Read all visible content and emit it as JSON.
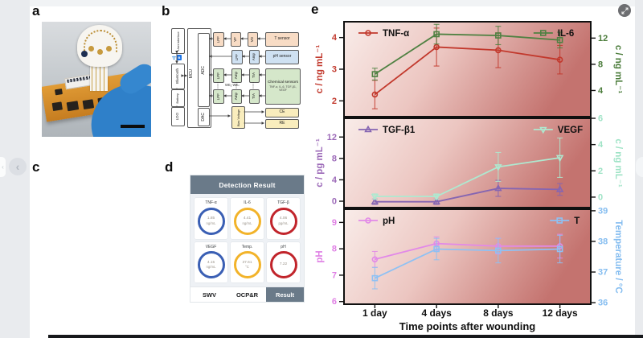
{
  "figure": {
    "panel_labels": {
      "a": "a",
      "b": "b",
      "c": "c",
      "d": "d",
      "e": "e"
    }
  },
  "chrome": {
    "nav_left_glyph": "‹",
    "nav_right_glyph": "›",
    "expand_icon": "expand-icon"
  },
  "panel_b": {
    "user_interface": "User interface",
    "bluetooth": "Bluetooth",
    "bluetooth_chip": "B",
    "battery": "Battery",
    "ldo": "LDO",
    "mcu": "MCU",
    "adc": "ADC",
    "dac": "DAC",
    "lpf": "LPF",
    "vf": "VF",
    "vd": "VD",
    "amp": "Amp",
    "tia": "TIA",
    "t_sensor": "T sensor",
    "ph_sensor": "pH sensor",
    "chem_title": "Chemical sensors",
    "chem_sub": "TNF-α, IL-6, TGF-β1, VEGF",
    "we_label": "WE₁-WEₙ",
    "bias": "Bias Voltage",
    "ce": "CE",
    "re": "RE"
  },
  "panel_d": {
    "header": "Detection Result",
    "header_color": "#6a7a89",
    "cards": [
      {
        "name": "TNF-α",
        "value": "1.85",
        "unit": "ng/mL",
        "color": "#3a5fb4"
      },
      {
        "name": "IL-6",
        "value": "4.41",
        "unit": "ng/mL",
        "color": "#f2b32a"
      },
      {
        "name": "TGF-β",
        "value": "4.06",
        "unit": "pg/mL",
        "color": "#c1242b"
      },
      {
        "name": "VEGF",
        "value": "4.15",
        "unit": "ng/mL",
        "color": "#3a5fb4"
      },
      {
        "name": "Temp.",
        "value": "37.61",
        "unit": "°C",
        "color": "#f2b32a"
      },
      {
        "name": "pH",
        "value": "7.22",
        "unit": "",
        "color": "#c1242b"
      }
    ],
    "tabs": [
      "SWV",
      "OCP&R",
      "Result"
    ],
    "active_tab": "Result"
  },
  "panel_e": {
    "xlabel": "Time points after wounding",
    "categories": [
      "1 day",
      "4 days",
      "8 days",
      "12 days"
    ],
    "background_gradient": [
      "#f9ece9",
      "#ecc6c1",
      "#c4736f"
    ],
    "chart_data": [
      {
        "id": "cytokines",
        "type": "line",
        "left_axis": {
          "label": "c / ng mL⁻¹",
          "color": "#c23a2e",
          "ticks": [
            2,
            3,
            4
          ],
          "range": [
            1.5,
            4.5
          ]
        },
        "right_axis": {
          "label": "c / ng mL⁻¹",
          "color": "#4c7d3c",
          "ticks": [
            4,
            8,
            12
          ],
          "range": [
            0,
            14.5
          ]
        },
        "series": [
          {
            "name": "TNF-α",
            "axis": "left",
            "color": "#c2382c",
            "marker": "circle",
            "values": [
              2.2,
              3.7,
              3.6,
              3.3
            ],
            "errors": [
              0.45,
              0.6,
              0.55,
              0.45
            ]
          },
          {
            "name": "IL-6",
            "axis": "right",
            "color": "#4f8142",
            "marker": "square",
            "values": [
              6.5,
              12.6,
              12.4,
              11.7
            ],
            "errors": [
              0.9,
              1.5,
              1.4,
              1.2
            ]
          }
        ]
      },
      {
        "id": "growth-factors",
        "type": "line",
        "left_axis": {
          "label": "c / pg mL⁻¹",
          "color": "#9c6ab8",
          "ticks": [
            0,
            4,
            8,
            12
          ],
          "range": [
            -1.2,
            15.5
          ]
        },
        "right_axis": {
          "label": "c / ng mL⁻¹",
          "color": "#9fe3c6",
          "ticks": [
            0,
            2,
            4,
            6
          ],
          "range": [
            -0.8,
            6.0
          ]
        },
        "series": [
          {
            "name": "TGF-β1",
            "axis": "left",
            "color": "#8565b2",
            "marker": "triangle",
            "values": [
              -0.1,
              -0.1,
              2.4,
              2.2
            ],
            "errors": [
              0.5,
              0.5,
              1.5,
              1.1
            ]
          },
          {
            "name": "VEGF",
            "axis": "right",
            "color": "#aee9d0",
            "marker": "triangle-down",
            "values": [
              0.05,
              0.05,
              2.3,
              3.0
            ],
            "errors": [
              0.2,
              0.2,
              1.1,
              1.5
            ]
          }
        ]
      },
      {
        "id": "ph-temperature",
        "type": "line",
        "left_axis": {
          "label": "pH",
          "color": "#df7fe4",
          "ticks": [
            6,
            7,
            8,
            9
          ],
          "range": [
            5.9,
            9.5
          ]
        },
        "right_axis": {
          "label": "Temperature / °C",
          "color": "#85bdf0",
          "ticks": [
            36,
            37,
            38,
            39
          ],
          "range": [
            35.95,
            39.05
          ]
        },
        "series": [
          {
            "name": "pH",
            "axis": "left",
            "color": "#e289e8",
            "marker": "circle",
            "values": [
              7.6,
              8.2,
              8.1,
              8.1
            ],
            "errors": [
              0.3,
              0.25,
              0.3,
              0.45
            ]
          },
          {
            "name": "T",
            "axis": "right",
            "color": "#8ec1f4",
            "marker": "square",
            "values": [
              36.8,
              37.75,
              37.7,
              37.75
            ],
            "errors": [
              0.35,
              0.35,
              0.4,
              0.45
            ]
          }
        ]
      }
    ]
  }
}
